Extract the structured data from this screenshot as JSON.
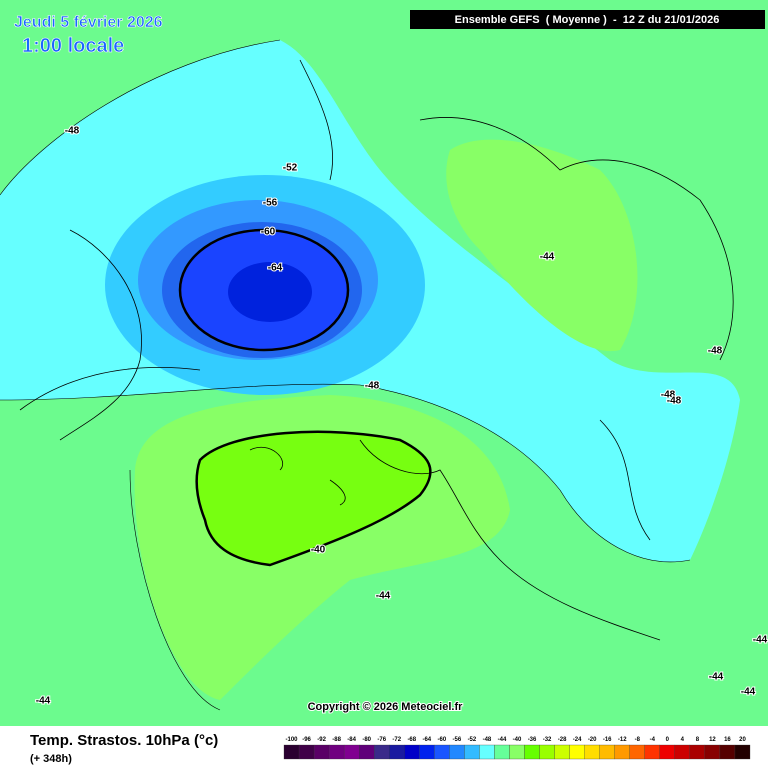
{
  "header": {
    "date": "Jeudi 5 février 2026",
    "time": "1:00 locale",
    "run": "Ensemble GEFS  ( Moyenne )  -  12 Z du 21/01/2026"
  },
  "map": {
    "contour_labels": [
      "-48",
      "-52",
      "-56",
      "-60",
      "-64",
      "-44",
      "-48",
      "-48",
      "-48",
      "-48",
      "-40",
      "-44",
      "-44",
      "-44",
      "-44",
      "-44"
    ]
  },
  "footer": {
    "copyright": "Copyright © 2026 Meteociel.fr",
    "title": "Temp. Strastos. 10hPa (°c)",
    "lead": "(+ 348h)"
  },
  "legend": {
    "ticks": [
      "-100",
      "-96",
      "-92",
      "-88",
      "-84",
      "-80",
      "-76",
      "-72",
      "-68",
      "-64",
      "-60",
      "-56",
      "-52",
      "-48",
      "-44",
      "-40",
      "-36",
      "-32",
      "-28",
      "-24",
      "-20",
      "-16",
      "-12",
      "-8",
      "-4",
      "0",
      "4",
      "8",
      "12",
      "16",
      "20"
    ],
    "colors": [
      "#2a0030",
      "#400048",
      "#5a0066",
      "#700080",
      "#800090",
      "#60007a",
      "#3a2a8a",
      "#1a1aa0",
      "#0000c8",
      "#0022ee",
      "#1a55ff",
      "#2288ff",
      "#33bbff",
      "#66ffff",
      "#66ff99",
      "#88ff66",
      "#66ff00",
      "#99ff00",
      "#ccff00",
      "#ffff00",
      "#ffdd00",
      "#ffbb00",
      "#ff9900",
      "#ff6600",
      "#ff3300",
      "#ee0000",
      "#cc0000",
      "#aa0000",
      "#880000",
      "#550000",
      "#220000"
    ]
  }
}
